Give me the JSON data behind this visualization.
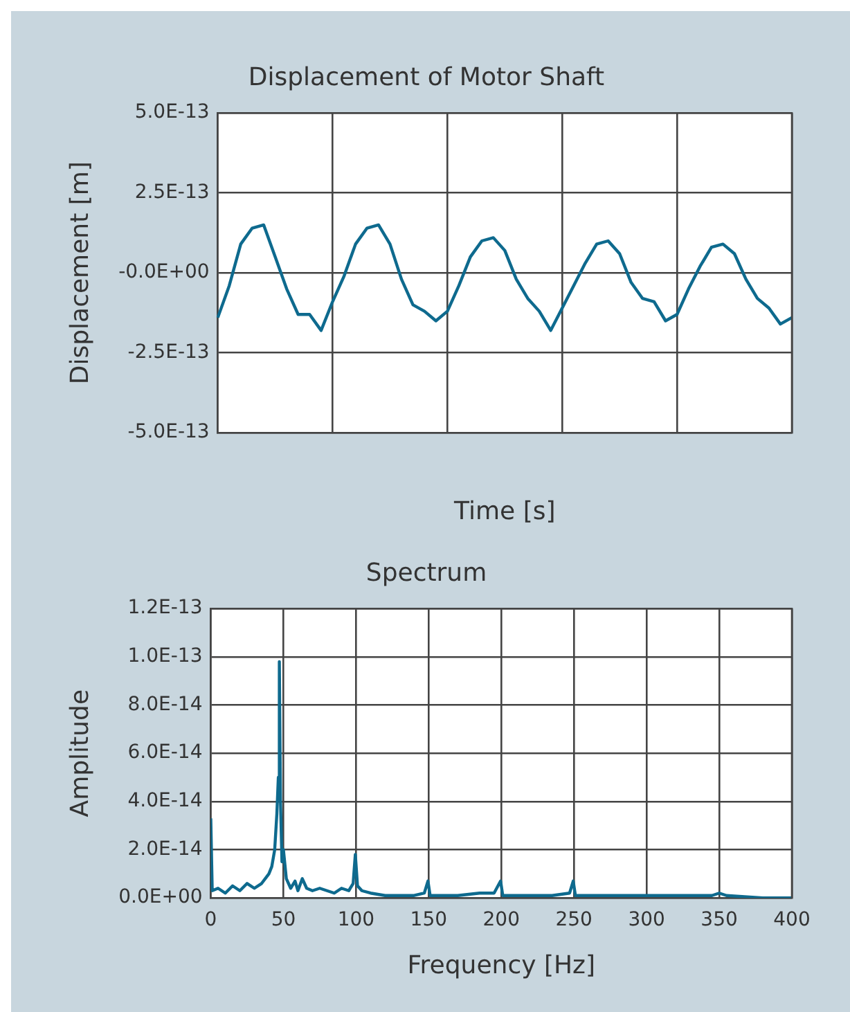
{
  "chart_data": [
    {
      "type": "line",
      "title": "Displacement of Motor Shaft",
      "xlabel": "Time [s]",
      "ylabel": "Displacement [m]",
      "color": "#0e6a8e",
      "grid": true,
      "categories": [
        null,
        null,
        null,
        null,
        null,
        null,
        null,
        null,
        null,
        null,
        null,
        null,
        null,
        null,
        null,
        null,
        null,
        null,
        null,
        null,
        null,
        null,
        null,
        null,
        null,
        null,
        null,
        null,
        null,
        null,
        null,
        null,
        null,
        null,
        null,
        null,
        null,
        null,
        null,
        null,
        null,
        null,
        null,
        null,
        null,
        null,
        null,
        null,
        null,
        null,
        null
      ],
      "ylim": [
        -5e-13,
        5e-13
      ],
      "yticks": [
        {
          "value": -5e-13,
          "label": "-5.0E-13"
        },
        {
          "value": -2.5e-13,
          "label": "-2.5E-13"
        },
        {
          "value": 0,
          "label": "-0.0E+00"
        },
        {
          "value": 2.5e-13,
          "label": "2.5E-13"
        },
        {
          "value": 5e-13,
          "label": "5.0E-13"
        }
      ],
      "values": [
        -1.4e-13,
        -4e-14,
        9e-14,
        1.4e-13,
        1.5e-13,
        5e-14,
        -5e-14,
        -1.3e-13,
        -1.3e-13,
        -1.8e-13,
        -9e-14,
        -1e-14,
        9e-14,
        1.4e-13,
        1.5e-13,
        9e-14,
        -2e-14,
        -1e-13,
        -1.2e-13,
        -1.5e-13,
        -1.2e-13,
        -4e-14,
        5e-14,
        1e-13,
        1.1e-13,
        7e-14,
        -2e-14,
        -8e-14,
        -1.2e-13,
        -1.8e-13,
        -1.1e-13,
        -4e-14,
        3e-14,
        9e-14,
        1e-13,
        6e-14,
        -3e-14,
        -8e-14,
        -9e-14,
        -1.5e-13,
        -1.3e-13,
        -5e-14,
        2e-14,
        8e-14,
        9e-14,
        6e-14,
        -2e-14,
        -8e-14,
        -1.1e-13,
        -1.6e-13,
        -1.4e-13
      ]
    },
    {
      "type": "line",
      "title": "Spectrum",
      "xlabel": "Frequency [Hz]",
      "ylabel": "Amplitude",
      "color": "#0e6a8e",
      "grid": true,
      "xlim": [
        0,
        400
      ],
      "xticks": [
        0,
        50,
        100,
        150,
        200,
        250,
        300,
        350,
        400
      ],
      "ylim": [
        0,
        1.2e-13
      ],
      "yticks": [
        {
          "value": 0,
          "label": "0.0E+00"
        },
        {
          "value": 2e-14,
          "label": "2.0E-14"
        },
        {
          "value": 4e-14,
          "label": "4.0E-14"
        },
        {
          "value": 6e-14,
          "label": "6.0E-14"
        },
        {
          "value": 8e-14,
          "label": "8.0E-14"
        },
        {
          "value": 1e-13,
          "label": "1.0E-13"
        },
        {
          "value": 1.2e-13,
          "label": "1.2E-13"
        }
      ],
      "x": [
        0,
        1,
        5,
        10,
        15,
        20,
        25,
        30,
        35,
        40,
        42,
        44,
        45.5,
        46.5,
        47.2,
        48,
        49,
        50,
        52,
        55,
        58,
        60,
        63,
        66,
        70,
        75,
        80,
        85,
        90,
        95,
        98,
        99.5,
        101,
        104,
        110,
        120,
        130,
        140,
        147,
        149.5,
        151,
        160,
        170,
        185,
        195,
        199.5,
        201,
        210,
        220,
        235,
        247,
        249.5,
        251,
        260,
        275,
        290,
        300,
        320,
        345,
        350,
        355,
        380,
        400
      ],
      "values": [
        3.3e-14,
        3e-15,
        4e-15,
        2e-15,
        5e-15,
        3e-15,
        6e-15,
        4e-15,
        6e-15,
        1e-14,
        1.3e-14,
        2e-14,
        3.5e-14,
        5e-14,
        9.8e-14,
        4e-14,
        1.5e-14,
        2e-14,
        8e-15,
        4e-15,
        7e-15,
        3e-15,
        8e-15,
        4e-15,
        3e-15,
        4e-15,
        3e-15,
        2e-15,
        4e-15,
        3e-15,
        6e-15,
        1.8e-14,
        5e-15,
        3e-15,
        2e-15,
        1e-15,
        1e-15,
        1e-15,
        2e-15,
        7e-15,
        1e-15,
        1e-15,
        1e-15,
        2e-15,
        2e-15,
        7e-15,
        1e-15,
        1e-15,
        1e-15,
        1e-15,
        2e-15,
        7e-15,
        1e-15,
        1e-15,
        1e-15,
        1e-15,
        1e-15,
        1e-15,
        1e-15,
        2e-15,
        1e-15,
        0,
        0
      ]
    }
  ]
}
